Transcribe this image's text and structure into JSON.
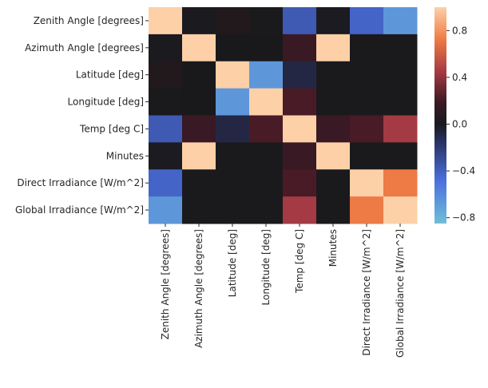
{
  "chart_data": {
    "type": "heatmap",
    "title": "",
    "xlabel": "",
    "ylabel": "",
    "labels": [
      "Zenith Angle [degrees]",
      "Azimuth Angle [degrees]",
      "Latitude [deg]",
      "Longitude [deg]",
      "Temp [deg C]",
      "Minutes",
      "Direct Irradiance [W/m^2]",
      "Global Irradiance [W/m^2]"
    ],
    "values": [
      [
        1.0,
        -0.05,
        0.05,
        -0.02,
        -0.55,
        -0.08,
        -0.6,
        -0.75
      ],
      [
        -0.05,
        1.0,
        0.0,
        0.0,
        0.15,
        1.0,
        -0.02,
        -0.02
      ],
      [
        0.05,
        0.0,
        1.0,
        -0.75,
        -0.25,
        -0.02,
        -0.02,
        -0.02
      ],
      [
        -0.02,
        0.0,
        -0.75,
        1.0,
        0.2,
        -0.02,
        -0.02,
        -0.02
      ],
      [
        -0.55,
        0.15,
        -0.25,
        0.2,
        1.0,
        0.15,
        0.2,
        0.4
      ],
      [
        -0.08,
        1.0,
        -0.02,
        -0.02,
        0.15,
        1.0,
        -0.02,
        -0.02
      ],
      [
        -0.6,
        -0.02,
        -0.02,
        -0.02,
        0.2,
        -0.02,
        1.0,
        0.78
      ],
      [
        -0.75,
        -0.02,
        -0.02,
        -0.02,
        0.4,
        -0.02,
        0.78,
        1.0
      ]
    ],
    "colorbar": {
      "range": [
        -0.85,
        1.0
      ],
      "ticks": [
        -0.8,
        -0.4,
        0.0,
        0.4,
        0.8
      ],
      "tick_labels": [
        "−0.8",
        "−0.4",
        "0.0",
        "0.4",
        "0.8"
      ],
      "colormap": "icefire"
    },
    "legend": "none",
    "grid": false
  }
}
